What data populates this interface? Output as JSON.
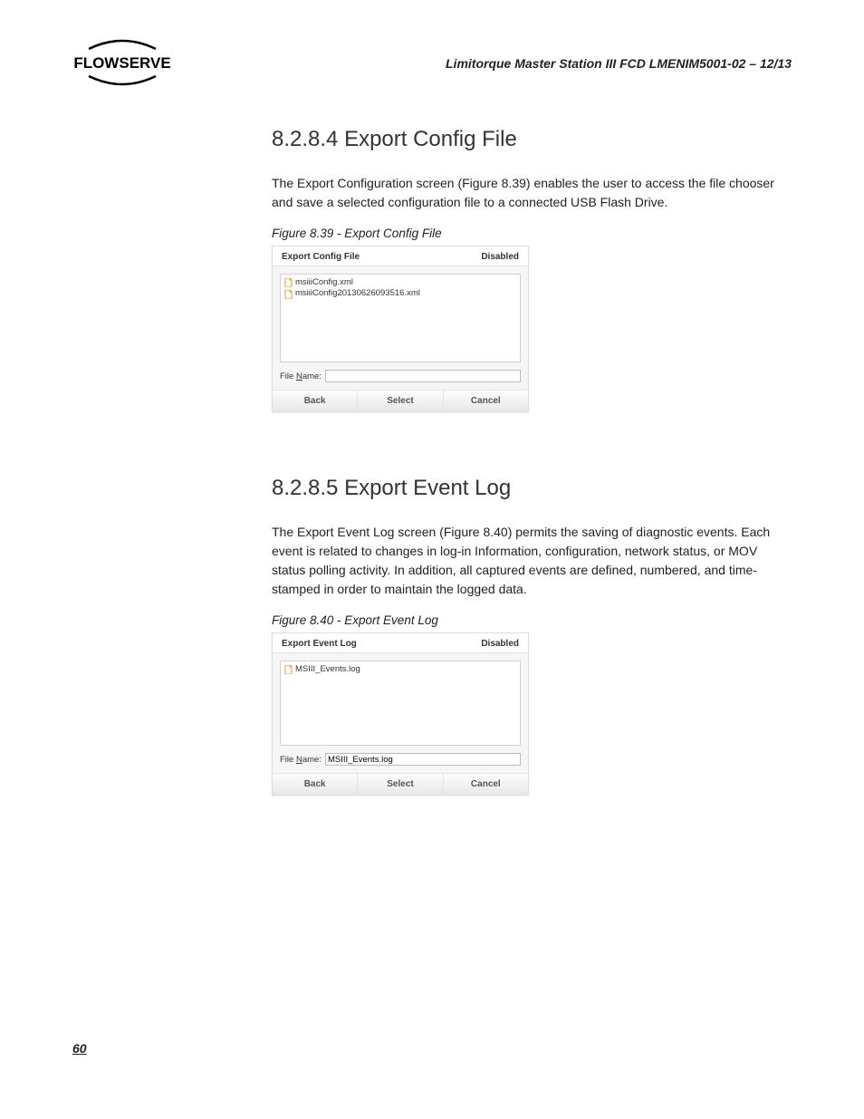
{
  "header": {
    "doc_title": "Limitorque Master Station III   FCD LMENIM5001-02 – 12/13",
    "logo_text": "FLOWSERVE"
  },
  "section1": {
    "heading": "8.2.8.4 Export Config File",
    "body": "The Export Configuration screen (Figure 8.39) enables the user to access the file chooser and save a selected configuration file to a connected USB Flash Drive.",
    "caption": "Figure 8.39 - Export Config File",
    "dialog": {
      "title": "Export Config File",
      "status": "Disabled",
      "files": [
        "msiiiConfig.xml",
        "msiiiConfig20130626093516.xml"
      ],
      "file_label": "File Name:",
      "file_value": "",
      "buttons": {
        "back": "Back",
        "select": "Select",
        "cancel": "Cancel"
      }
    }
  },
  "section2": {
    "heading": "8.2.8.5 Export Event Log",
    "body": "The Export Event Log screen (Figure 8.40) permits the saving of diagnostic events. Each event is related to changes in log-in Information, configuration, network status, or MOV status polling activity. In addition, all captured events are defined, numbered, and time-stamped in order to maintain the logged data.",
    "caption": "Figure 8.40 - Export Event Log",
    "dialog": {
      "title": "Export Event Log",
      "status": "Disabled",
      "files": [
        "MSIII_Events.log"
      ],
      "file_label": "File Name:",
      "file_value": "MSIII_Events.log",
      "buttons": {
        "back": "Back",
        "select": "Select",
        "cancel": "Cancel"
      }
    }
  },
  "page_number": "60",
  "styling": {
    "page_bg": "#ffffff",
    "text_color": "#222222",
    "heading_color": "#333333",
    "dialog_bg": "#f6f6f6",
    "dialog_border": "#dddddd",
    "filelist_bg": "#ffffff",
    "filelist_border": "#d0d0d0",
    "button_text": "#555555",
    "file_icon_color": "#d99a3c",
    "heading_fontsize": 24,
    "body_fontsize": 14,
    "caption_fontsize": 13.5,
    "dialog_fontsize": 10
  }
}
